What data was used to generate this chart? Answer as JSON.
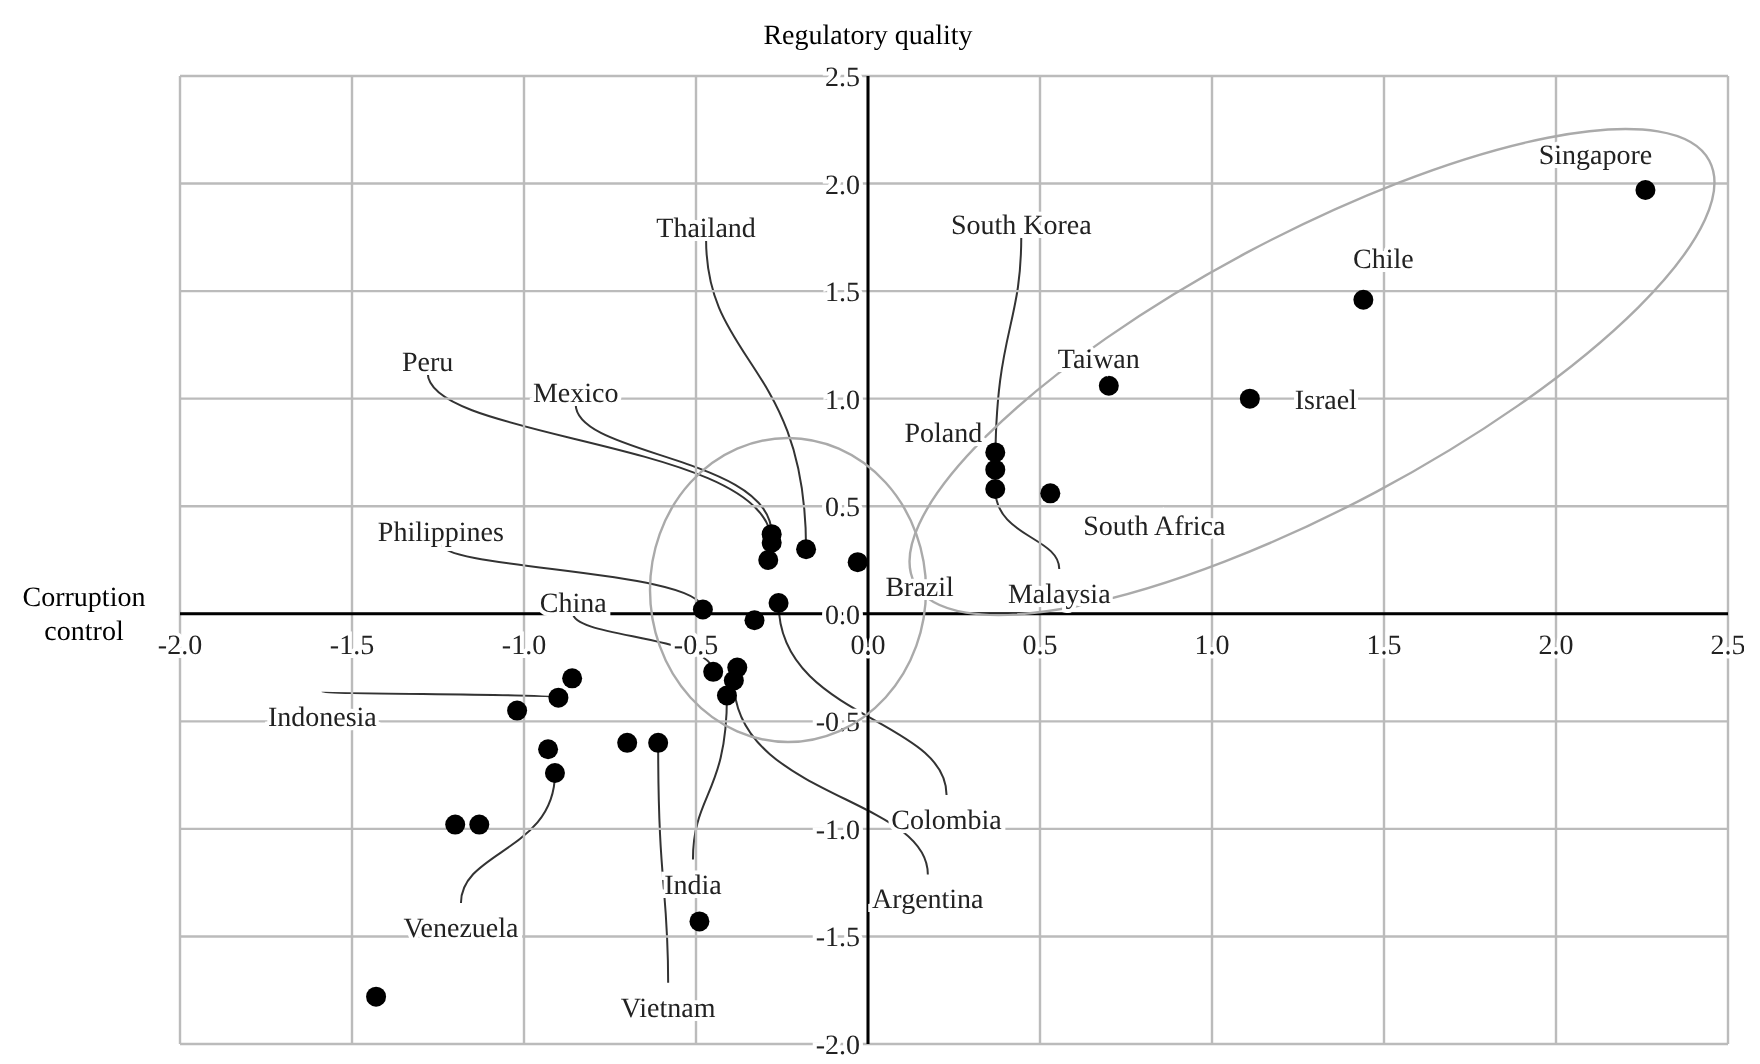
{
  "chart_data": {
    "type": "scatter",
    "xlabel": "Corruption control",
    "ylabel": "Regulatory quality",
    "x": [
      2.26,
      1.44,
      0.7,
      1.11,
      0.37,
      0.37,
      0.37,
      0.53,
      -0.03,
      -0.28,
      -0.28,
      -0.29,
      -0.18,
      -0.48,
      -0.26,
      -0.33,
      -0.45,
      -0.38,
      -0.39,
      -0.41,
      -0.7,
      -0.61,
      -0.86,
      -0.9,
      -1.02,
      -0.93,
      -0.91,
      -1.2,
      -1.13,
      -1.43,
      -0.49
    ],
    "values": [
      1.97,
      1.46,
      1.06,
      1.0,
      0.75,
      0.67,
      0.58,
      0.56,
      0.24,
      0.37,
      0.33,
      0.25,
      0.3,
      0.02,
      0.05,
      -0.03,
      -0.27,
      -0.25,
      -0.31,
      -0.38,
      -0.6,
      -0.6,
      -0.3,
      -0.39,
      -0.45,
      -0.63,
      -0.74,
      -0.98,
      -0.98,
      -1.78,
      -1.43
    ],
    "color": "#000000",
    "marker": "circle",
    "grid": true,
    "legend": false,
    "xlim": [
      -2,
      2.5
    ],
    "ylim": [
      -2,
      2.5
    ],
    "xticks": [
      {
        "value": -2,
        "label": "-2.0"
      },
      -1.5,
      {
        "value": -1,
        "label": "-1.0"
      },
      -0.5,
      {
        "value": 0,
        "label": "0.0"
      },
      0.5,
      {
        "value": 1,
        "label": "1.0"
      },
      1.5,
      {
        "value": 2,
        "label": "2.0"
      },
      2.5
    ],
    "yticks": [
      {
        "value": -2,
        "label": "-2.0"
      },
      -1.5,
      {
        "value": -1,
        "label": "-1.0"
      },
      -0.5,
      {
        "value": 0,
        "label": "0.0"
      },
      0.5,
      {
        "value": 1,
        "label": "1.0"
      },
      1.5,
      {
        "value": 2,
        "label": "2.0"
      },
      2.5
    ],
    "annotations": [
      {
        "text": "Singapore",
        "x": 2.26,
        "y": 1.97
      },
      {
        "text": "Chile",
        "x": 1.44,
        "y": 1.46
      },
      {
        "text": "Taiwan",
        "x": 0.7,
        "y": 1.06
      },
      {
        "text": "Israel",
        "x": 1.11,
        "y": 1.0
      },
      {
        "text": "Poland",
        "x": 0.37,
        "y": 0.75
      },
      {
        "text": "South Korea",
        "x": 0.37,
        "y": 0.67
      },
      {
        "text": "Malaysia",
        "x": 0.37,
        "y": 0.58
      },
      {
        "text": "South Africa",
        "x": 0.53,
        "y": 0.56
      },
      {
        "text": "Brazil",
        "x": -0.03,
        "y": 0.24
      },
      {
        "text": "Thailand",
        "x": -0.18,
        "y": 0.3
      },
      {
        "text": "Mexico",
        "x": -0.28,
        "y": 0.37
      },
      {
        "text": "Peru",
        "x": -0.28,
        "y": 0.33
      },
      {
        "text": "Philippines",
        "x": -0.48,
        "y": 0.02
      },
      {
        "text": "China",
        "x": -0.45,
        "y": -0.27
      },
      {
        "text": "Colombia",
        "x": -0.26,
        "y": 0.05
      },
      {
        "text": "Argentina",
        "x": -0.39,
        "y": -0.31
      },
      {
        "text": "India",
        "x": -0.41,
        "y": -0.38
      },
      {
        "text": "Indonesia",
        "x": -0.9,
        "y": -0.39
      },
      {
        "text": "Venezuela",
        "x": -0.91,
        "y": -0.74
      },
      {
        "text": "Vietnam",
        "x": -0.61,
        "y": -0.6
      }
    ]
  }
}
